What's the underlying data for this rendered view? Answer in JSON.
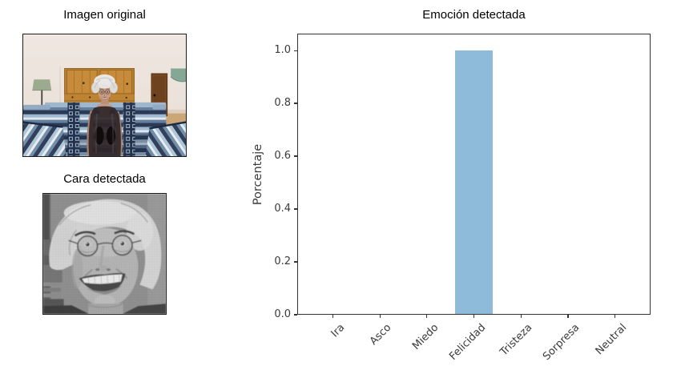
{
  "figure": {
    "background": "#ffffff"
  },
  "panels": {
    "original": {
      "title": "Imagen original"
    },
    "face": {
      "title": "Cara detectada"
    }
  },
  "chart_data": {
    "type": "bar",
    "title": "Emoción detectada",
    "xlabel": "",
    "ylabel": "Porcentaje",
    "categories": [
      "Ira",
      "Asco",
      "Miedo",
      "Felicidad",
      "Tristeza",
      "Sorpresa",
      "Neutral"
    ],
    "values": [
      0,
      0,
      0,
      1.0,
      0,
      0,
      0
    ],
    "yticks": [
      0.0,
      0.2,
      0.4,
      0.6,
      0.8,
      1.0
    ],
    "ylim": [
      0,
      1.064
    ],
    "xtick_rotation_deg": 45,
    "bar_color": "#8fbbda",
    "axis_color": "#333333",
    "tick_label_color": "#3a3a3a",
    "grid": false,
    "legend": null
  }
}
